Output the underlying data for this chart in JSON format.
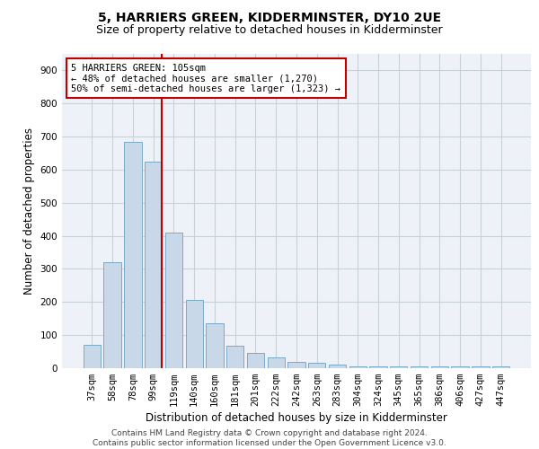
{
  "title": "5, HARRIERS GREEN, KIDDERMINSTER, DY10 2UE",
  "subtitle": "Size of property relative to detached houses in Kidderminster",
  "xlabel": "Distribution of detached houses by size in Kidderminster",
  "ylabel": "Number of detached properties",
  "categories": [
    "37sqm",
    "58sqm",
    "78sqm",
    "99sqm",
    "119sqm",
    "140sqm",
    "160sqm",
    "181sqm",
    "201sqm",
    "222sqm",
    "242sqm",
    "263sqm",
    "283sqm",
    "304sqm",
    "324sqm",
    "345sqm",
    "365sqm",
    "386sqm",
    "406sqm",
    "427sqm",
    "447sqm"
  ],
  "values": [
    70,
    320,
    685,
    625,
    410,
    205,
    135,
    68,
    45,
    32,
    20,
    15,
    10,
    5,
    5,
    5,
    5,
    5,
    5,
    5,
    5
  ],
  "bar_color": "#c8d8e8",
  "bar_edge_color": "#7aaac8",
  "highlight_bar_index": 3,
  "highlight_color": "#c00000",
  "annotation_text": "5 HARRIERS GREEN: 105sqm\n← 48% of detached houses are smaller (1,270)\n50% of semi-detached houses are larger (1,323) →",
  "annotation_box_color": "#ffffff",
  "annotation_box_edge": "#c00000",
  "ylim": [
    0,
    950
  ],
  "yticks": [
    0,
    100,
    200,
    300,
    400,
    500,
    600,
    700,
    800,
    900
  ],
  "footer": "Contains HM Land Registry data © Crown copyright and database right 2024.\nContains public sector information licensed under the Open Government Licence v3.0.",
  "title_fontsize": 10,
  "subtitle_fontsize": 9,
  "xlabel_fontsize": 8.5,
  "ylabel_fontsize": 8.5,
  "tick_fontsize": 7.5,
  "annotation_fontsize": 7.5,
  "footer_fontsize": 6.5,
  "grid_color": "#c8d0d8",
  "bg_color": "#eef2f8"
}
